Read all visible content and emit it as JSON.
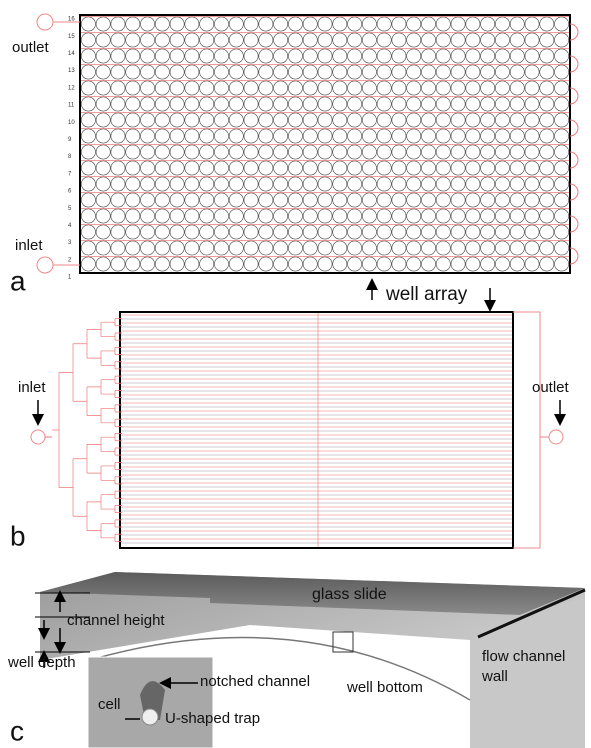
{
  "panel_a": {
    "label": "a",
    "outlet": "outlet",
    "inlet": "inlet",
    "row_numbers": [
      1,
      2,
      3,
      4,
      5,
      6,
      7,
      8,
      9,
      10,
      11,
      12,
      13,
      14,
      15,
      16
    ]
  },
  "well_array": "well array",
  "panel_b": {
    "label": "b",
    "inlet": "inlet",
    "outlet": "outlet"
  },
  "panel_c": {
    "label": "c",
    "glass_slide": "glass slide",
    "channel_height": "channel height",
    "well_depth": "well depth",
    "notched_channel": "notched channel",
    "well_bottom": "well bottom",
    "flow_channel": "flow channel",
    "wall": "wall",
    "cell": "cell",
    "u_trap": "U-shaped trap"
  }
}
